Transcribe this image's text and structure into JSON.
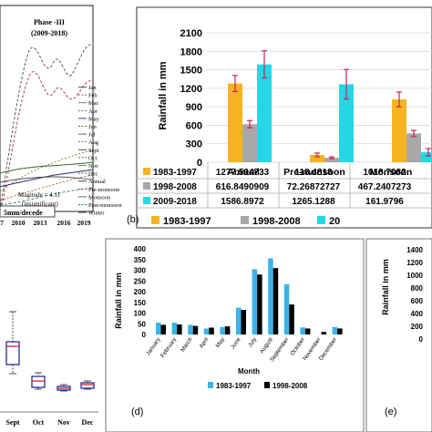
{
  "chart_data": [
    {
      "id": "a",
      "type": "line",
      "title_line1": "Phase -III",
      "title_line2": "(2009-2018)",
      "legend": [
        "Jan",
        "Feb",
        "Mar",
        "Apr",
        "May",
        "Jun",
        "Jul",
        "Aug",
        "Sept",
        "Oct",
        "Nov",
        "Dec",
        "Annual",
        "Pre-monsoon",
        "Monsoon",
        "Post-monsoon",
        "Winter"
      ],
      "x_ticks": [
        "7",
        "2010",
        "2013",
        "2016",
        "2019"
      ],
      "magnitude_line1": "Magitude = 4.11",
      "magnitude_line2": "(insignificant)",
      "unit_label": "5mm/decede"
    },
    {
      "id": "b",
      "panel_label": "(b)",
      "type": "bar",
      "ylabel": "Rainfall in mm",
      "ylim": [
        0,
        2100
      ],
      "y_ticks": [
        "0",
        "300",
        "600",
        "900",
        "1200",
        "1500",
        "1800",
        "2100"
      ],
      "categories": [
        "Annual",
        "Pre-monsoon",
        "Monsoon"
      ],
      "series": [
        {
          "name": "1983-1997",
          "color": "#f5b324",
          "values": [
            1277.594733,
            118.4818,
            1018.7082
          ],
          "table_values": [
            "1277.594733",
            "118.4818",
            "1018.7082"
          ],
          "errors": [
            130,
            30,
            120
          ]
        },
        {
          "name": "1998-2008",
          "color": "#a8a8a8",
          "values": [
            616.8490909,
            72.26872727,
            467.2407273
          ],
          "table_values": [
            "616.8490909",
            "72.26872727",
            "467.2407273"
          ],
          "errors": [
            60,
            15,
            50
          ]
        },
        {
          "name": "2009-2018",
          "color": "#26d6e6",
          "values": [
            1586.8972,
            1265.1288,
            161.9796
          ],
          "table_values": [
            "1586.8972",
            "1265.1288",
            "161.9796"
          ],
          "errors": [
            220,
            240,
            60
          ]
        }
      ],
      "error_color": "#cc2255",
      "bottom_legend": [
        "1983-1997",
        "1998-2008",
        "20"
      ]
    },
    {
      "id": "c",
      "type": "boxplot",
      "categories": [
        "Sept",
        "Oct",
        "Nov",
        "Dec"
      ]
    },
    {
      "id": "d",
      "panel_label": "(d)",
      "type": "bar",
      "ylabel": "Rainfall in mm",
      "xlabel": "Month",
      "ylim": [
        0,
        400
      ],
      "y_ticks": [
        "0",
        "50",
        "100",
        "150",
        "200",
        "250",
        "300",
        "350",
        "400"
      ],
      "categories": [
        "January",
        "February",
        "March",
        "April",
        "May",
        "June",
        "July",
        "August",
        "September",
        "October",
        "November",
        "December"
      ],
      "series": [
        {
          "name": "1983-1997",
          "color": "#3ab3e6",
          "values": [
            55,
            55,
            45,
            28,
            35,
            125,
            305,
            355,
            235,
            33,
            0,
            35
          ]
        },
        {
          "name": "1998-2008",
          "color": "#000000",
          "values": [
            45,
            47,
            40,
            32,
            38,
            115,
            280,
            310,
            140,
            28,
            12,
            28
          ]
        }
      ]
    },
    {
      "id": "e",
      "panel_label": "(e)",
      "type": "bar",
      "ylabel": "Rainfall in mm",
      "y_ticks": [
        "0",
        "200",
        "400",
        "600",
        "800",
        "1000",
        "1200",
        "1400"
      ]
    }
  ]
}
